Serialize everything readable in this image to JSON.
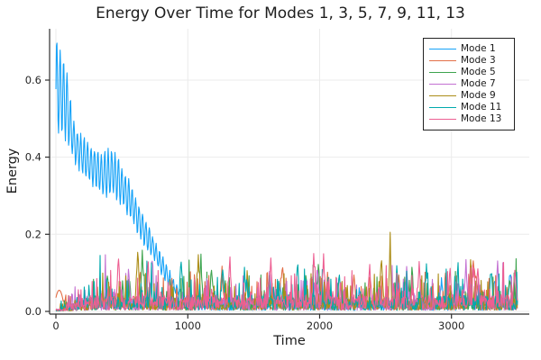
{
  "chart_data": {
    "type": "line",
    "title": "Energy Over Time for Modes 1, 3, 5, 7, 9, 11, 13",
    "xlabel": "Time",
    "ylabel": "Energy",
    "xlim": [
      -48,
      3590
    ],
    "ylim": [
      -0.007,
      0.733
    ],
    "x_range_of_data": [
      0,
      3500
    ],
    "grid": true,
    "legend_position": "top-right",
    "xticks": {
      "values": [
        0,
        1000,
        2000,
        3000
      ],
      "labels": [
        "0",
        "1000",
        "2000",
        "3000"
      ]
    },
    "yticks": {
      "values": [
        0,
        0.2,
        0.4,
        0.6
      ],
      "labels": [
        "0.0",
        "0.2",
        "0.4",
        "0.6"
      ]
    },
    "grid_color": "#ebebeb",
    "spine_color": "#2f2f2f",
    "tick_label_color": "#262626",
    "series": [
      {
        "name": "Mode 1",
        "color": "#15A2F8",
        "seed": 101,
        "step": 4,
        "oscillation": {
          "period": 26,
          "end": 1010,
          "hi": [
            [
              0,
              0.71
            ],
            [
              30,
              0.685
            ],
            [
              60,
              0.655
            ],
            [
              90,
              0.615
            ],
            [
              120,
              0.52
            ],
            [
              155,
              0.475
            ],
            [
              195,
              0.455
            ],
            [
              245,
              0.435
            ],
            [
              295,
              0.42
            ],
            [
              345,
              0.405
            ],
            [
              390,
              0.415
            ],
            [
              430,
              0.42
            ],
            [
              465,
              0.405
            ],
            [
              510,
              0.37
            ],
            [
              555,
              0.335
            ],
            [
              600,
              0.3
            ],
            [
              645,
              0.265
            ],
            [
              690,
              0.23
            ],
            [
              735,
              0.195
            ],
            [
              780,
              0.16
            ],
            [
              825,
              0.125
            ],
            [
              870,
              0.095
            ],
            [
              915,
              0.07
            ],
            [
              960,
              0.052
            ],
            [
              1010,
              0.04
            ]
          ],
          "lo": [
            [
              0,
              0.455
            ],
            [
              30,
              0.46
            ],
            [
              60,
              0.455
            ],
            [
              90,
              0.44
            ],
            [
              120,
              0.405
            ],
            [
              155,
              0.38
            ],
            [
              195,
              0.36
            ],
            [
              245,
              0.34
            ],
            [
              295,
              0.325
            ],
            [
              345,
              0.305
            ],
            [
              390,
              0.3
            ],
            [
              430,
              0.305
            ],
            [
              465,
              0.29
            ],
            [
              510,
              0.27
            ],
            [
              555,
              0.245
            ],
            [
              600,
              0.22
            ],
            [
              645,
              0.19
            ],
            [
              690,
              0.162
            ],
            [
              735,
              0.135
            ],
            [
              780,
              0.11
            ],
            [
              825,
              0.085
            ],
            [
              870,
              0.062
            ],
            [
              915,
              0.045
            ],
            [
              960,
              0.033
            ],
            [
              1010,
              0.026
            ]
          ]
        },
        "noise": {
          "base": 0.018,
          "peak": 0.05,
          "spikes": [
            [
              1150,
              0.08
            ],
            [
              1700,
              0.07
            ],
            [
              2300,
              0.06
            ],
            [
              2925,
              0.09
            ],
            [
              3180,
              0.08
            ],
            [
              3330,
              0.1
            ],
            [
              3445,
              0.12
            ]
          ]
        }
      },
      {
        "name": "Mode 3",
        "color": "#E36F47",
        "seed": 203,
        "start_bump": {
          "t": 25,
          "v": 0.055,
          "w": 42
        },
        "noise": {
          "base": 0.022,
          "peak": 0.095,
          "ramp": 260,
          "spikes": [
            [
              640,
              0.11
            ],
            [
              1260,
              0.11
            ],
            [
              1716,
              0.12,
              40
            ],
            [
              2060,
              0.1
            ],
            [
              2260,
              0.1
            ],
            [
              2600,
              0.09
            ],
            [
              3170,
              0.135,
              55
            ]
          ]
        }
      },
      {
        "name": "Mode 5",
        "color": "#3DA44E",
        "seed": 305,
        "noise": {
          "base": 0.022,
          "peak": 0.095,
          "ramp": 260,
          "spikes": [
            [
              390,
              0.1
            ],
            [
              656,
              0.17
            ],
            [
              1100,
              0.14
            ],
            [
              1180,
              0.13
            ],
            [
              1990,
              0.13
            ],
            [
              2700,
              0.12
            ],
            [
              3440,
              0.1
            ]
          ]
        }
      },
      {
        "name": "Mode 7",
        "color": "#C371D2",
        "seed": 407,
        "noise": {
          "base": 0.022,
          "peak": 0.095,
          "ramp": 260,
          "spikes": [
            [
              550,
              0.12
            ],
            [
              730,
              0.16
            ],
            [
              1620,
              0.12
            ],
            [
              1983,
              0.12
            ],
            [
              2660,
              0.11
            ],
            [
              3110,
              0.14
            ],
            [
              3350,
              0.12
            ]
          ]
        }
      },
      {
        "name": "Mode 9",
        "color": "#AC8D18",
        "seed": 509,
        "noise": {
          "base": 0.022,
          "peak": 0.095,
          "ramp": 260,
          "spikes": [
            [
              620,
              0.19
            ],
            [
              1080,
              0.17
            ],
            [
              1450,
              0.1
            ],
            [
              2468,
              0.16
            ],
            [
              2534,
              0.24,
              14
            ],
            [
              3145,
              0.13
            ]
          ]
        }
      },
      {
        "name": "Mode 11",
        "color": "#00A9AD",
        "seed": 611,
        "noise": {
          "base": 0.024,
          "peak": 0.1,
          "ramp": 260,
          "spikes": [
            [
              950,
              0.15
            ],
            [
              1265,
              0.12
            ],
            [
              1430,
              0.11
            ],
            [
              1832,
              0.13
            ],
            [
              2150,
              0.11
            ],
            [
              2584,
              0.12
            ],
            [
              2810,
              0.13
            ],
            [
              3050,
              0.12
            ],
            [
              3300,
              0.12
            ]
          ]
        }
      },
      {
        "name": "Mode 13",
        "color": "#ED5F92",
        "seed": 713,
        "noise": {
          "base": 0.026,
          "peak": 0.105,
          "ramp": 260,
          "spikes": [
            [
              475,
              0.15
            ],
            [
              700,
              0.13
            ],
            [
              1320,
              0.145
            ],
            [
              1630,
              0.14
            ],
            [
              1955,
              0.165,
              18
            ],
            [
              2030,
              0.15
            ],
            [
              2379,
              0.14
            ],
            [
              2755,
              0.12
            ],
            [
              2990,
              0.12
            ],
            [
              3200,
              0.12
            ],
            [
              3480,
              0.13
            ]
          ]
        }
      }
    ]
  }
}
